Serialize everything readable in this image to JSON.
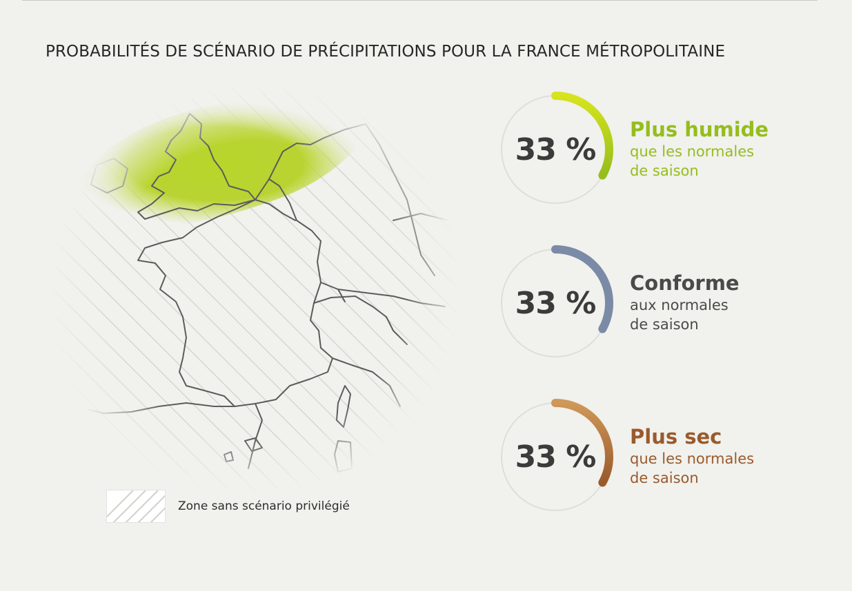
{
  "title": "PROBABILITÉS DE SCÉNARIO DE PRÉCIPITATIONS POUR LA FRANCE MÉTROPOLITAINE",
  "legend": {
    "label": "Zone sans scénario privilégié",
    "pattern": "diagonal-hatch"
  },
  "map": {
    "region": "France métropolitaine",
    "wet_zone_color": "#a8c62a",
    "hatch_color": "#d7d7d3",
    "border_color": "#555555"
  },
  "scenarios": [
    {
      "value": 0.33,
      "value_label": "33 %",
      "name": "Plus humide",
      "description_line1": "que les normales",
      "description_line2": "de saison",
      "color": "#95bd1d",
      "color_light": "#d7e41d"
    },
    {
      "value": 0.33,
      "value_label": "33 %",
      "name": "Conforme",
      "description_line1": "aux normales",
      "description_line2": "de saison",
      "color": "#7b8aa6",
      "color_light": "#7b8aa6",
      "text_color": "#4a4a4a"
    },
    {
      "value": 0.33,
      "value_label": "33 %",
      "name": "Plus sec",
      "description_line1": "que les normales",
      "description_line2": "de saison",
      "color": "#9a5a2c",
      "color_light": "#cf9858"
    }
  ]
}
